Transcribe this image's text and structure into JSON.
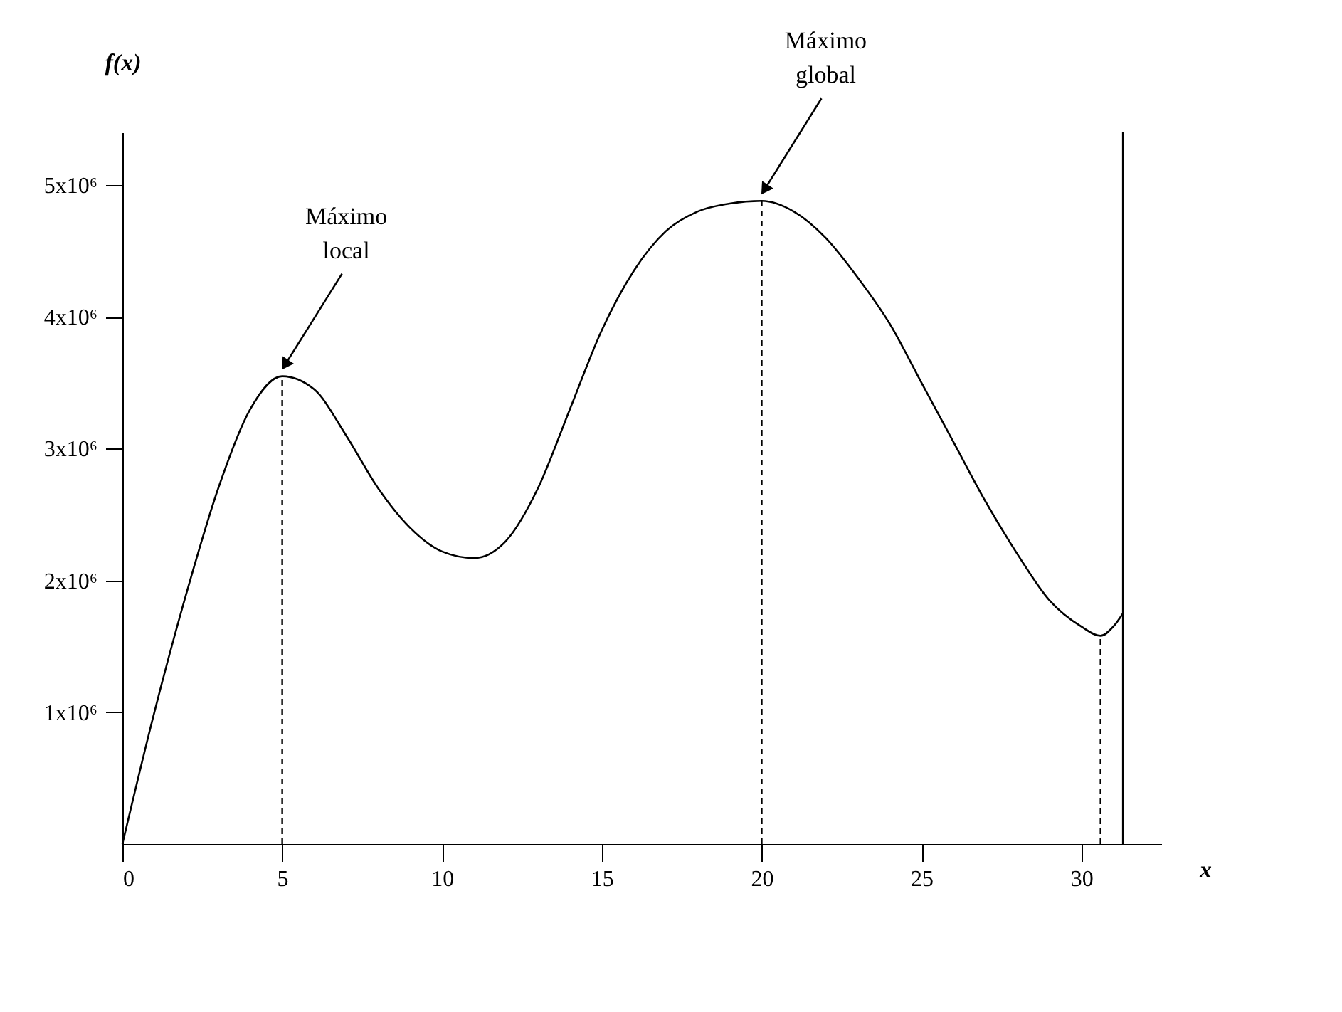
{
  "chart_data": {
    "type": "line",
    "xlabel": "x",
    "ylabel": "f(x)",
    "x": [
      0,
      1,
      2,
      3,
      4,
      5,
      6,
      7,
      8,
      9,
      10,
      11,
      12,
      13,
      14,
      15,
      16,
      17,
      18,
      19,
      20,
      21,
      22,
      23,
      24,
      25,
      26,
      27,
      28,
      29,
      30,
      30.6,
      31,
      31.3
    ],
    "series": [
      {
        "color": "#000000",
        "values": [
          0,
          1000000,
          1900000,
          2700000,
          3300000,
          3550000,
          3450000,
          3100000,
          2700000,
          2400000,
          2220000,
          2170000,
          2300000,
          2700000,
          3300000,
          3900000,
          4350000,
          4650000,
          4800000,
          4860000,
          4880000,
          4800000,
          4600000,
          4300000,
          3950000,
          3500000,
          3050000,
          2600000,
          2200000,
          1850000,
          1650000,
          1580000,
          1650000,
          1750000
        ]
      }
    ],
    "xlim": [
      0,
      32.5
    ],
    "ylim": [
      0,
      5400000
    ],
    "xticks": [
      0,
      5,
      10,
      15,
      20,
      25,
      30
    ],
    "yticks": [
      {
        "value": 1000000,
        "label": "1x10⁶"
      },
      {
        "value": 2000000,
        "label": "2x10⁶"
      },
      {
        "value": 3000000,
        "label": "3x10⁶"
      },
      {
        "value": 4000000,
        "label": "4x10⁶"
      },
      {
        "value": 5000000,
        "label": "5x10⁶"
      }
    ],
    "ref_lines": [
      {
        "axis": "x",
        "value": 5,
        "line_style": "dashed"
      },
      {
        "axis": "x",
        "value": 20,
        "line_style": "dashed"
      },
      {
        "axis": "x",
        "value": 30.6,
        "line_style": "dashed"
      },
      {
        "axis": "x",
        "value": 31.3,
        "line_style": "solid"
      }
    ],
    "annotations": [
      {
        "text": "Máximo\nlocal",
        "x": 5,
        "y": 3550000
      },
      {
        "text": "Máximo\nglobal",
        "x": 20,
        "y": 4880000
      }
    ],
    "grid": false,
    "marker": "none",
    "line_style": "solid"
  }
}
